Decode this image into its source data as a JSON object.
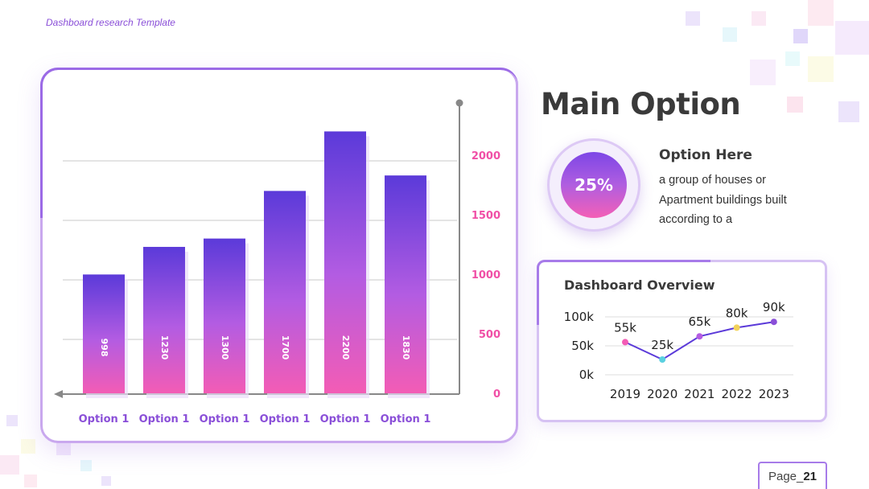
{
  "header": {
    "label": "Dashboard research Template"
  },
  "main": {
    "title": "Main Option",
    "percent": "25%",
    "option_title": "Option Here",
    "option_desc_lines": [
      "a group of houses or",
      "Apartment buildings built",
      "according to a"
    ]
  },
  "dashboard": {
    "title": "Dashboard Overview"
  },
  "footer": {
    "page_prefix": "Page_",
    "page_number": "21"
  },
  "colors": {
    "bar_top": "#5b3ad9",
    "bar_mid": "#b35ce2",
    "bar_bottom": "#f35cb5",
    "axis_label": "#f04fa6",
    "category_label": "#8a4fd8",
    "line": "#5b3ad9",
    "point_colors": [
      "#f35cb5",
      "#5ad0e0",
      "#b35ce2",
      "#f2d25a",
      "#8a4fd8"
    ]
  },
  "chart_data": [
    {
      "type": "bar",
      "categories": [
        "Option 1",
        "Option 1",
        "Option 1",
        "Option 1",
        "Option 1",
        "Option 1"
      ],
      "values": [
        998,
        1230,
        1300,
        1700,
        2200,
        1830
      ],
      "value_labels": [
        "998",
        "1230",
        "1300",
        "1700",
        "2200",
        "1830"
      ],
      "y_ticks": [
        0,
        500,
        1000,
        1500,
        2000
      ],
      "ylim": [
        0,
        2000
      ],
      "grid": true,
      "y_axis_side": "right"
    },
    {
      "type": "line",
      "x": [
        "2019",
        "2020",
        "2021",
        "2022",
        "2023"
      ],
      "values": [
        55,
        25,
        65,
        80,
        90
      ],
      "point_labels": [
        "55k",
        "25k",
        "65k",
        "80k",
        "90k"
      ],
      "y_ticks": [
        "0k",
        "50k",
        "100k"
      ],
      "ylim": [
        0,
        100
      ],
      "grid": true
    }
  ]
}
